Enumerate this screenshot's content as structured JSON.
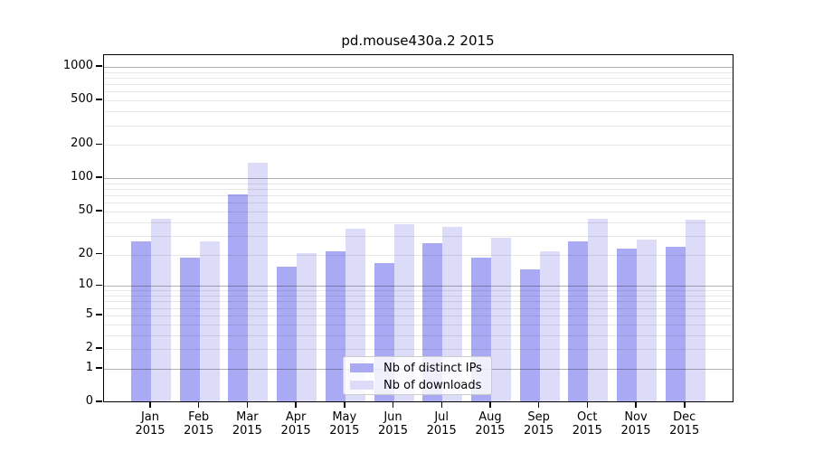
{
  "chart_data": {
    "type": "bar",
    "title": "pd.mouse430a.2 2015",
    "categories": [
      "Jan",
      "Feb",
      "Mar",
      "Apr",
      "May",
      "Jun",
      "Jul",
      "Aug",
      "Sep",
      "Oct",
      "Nov",
      "Dec"
    ],
    "category_sub_label": "2015",
    "series": [
      {
        "name": "Nb of distinct IPs",
        "color": "#a9a9f4",
        "values": [
          26,
          18,
          70,
          15,
          21,
          16,
          25,
          18,
          14,
          26,
          22,
          23
        ]
      },
      {
        "name": "Nb of downloads",
        "color": "#dcdcf9",
        "values": [
          42,
          26,
          135,
          20,
          34,
          37,
          35,
          28,
          21,
          42,
          27,
          41
        ]
      }
    ],
    "y_scale": "log1p",
    "y_ticks": [
      0,
      1,
      2,
      5,
      10,
      20,
      50,
      100,
      200,
      500,
      1000
    ],
    "ylim": [
      0,
      1250
    ],
    "grid": true,
    "legend_position": "lower center"
  }
}
